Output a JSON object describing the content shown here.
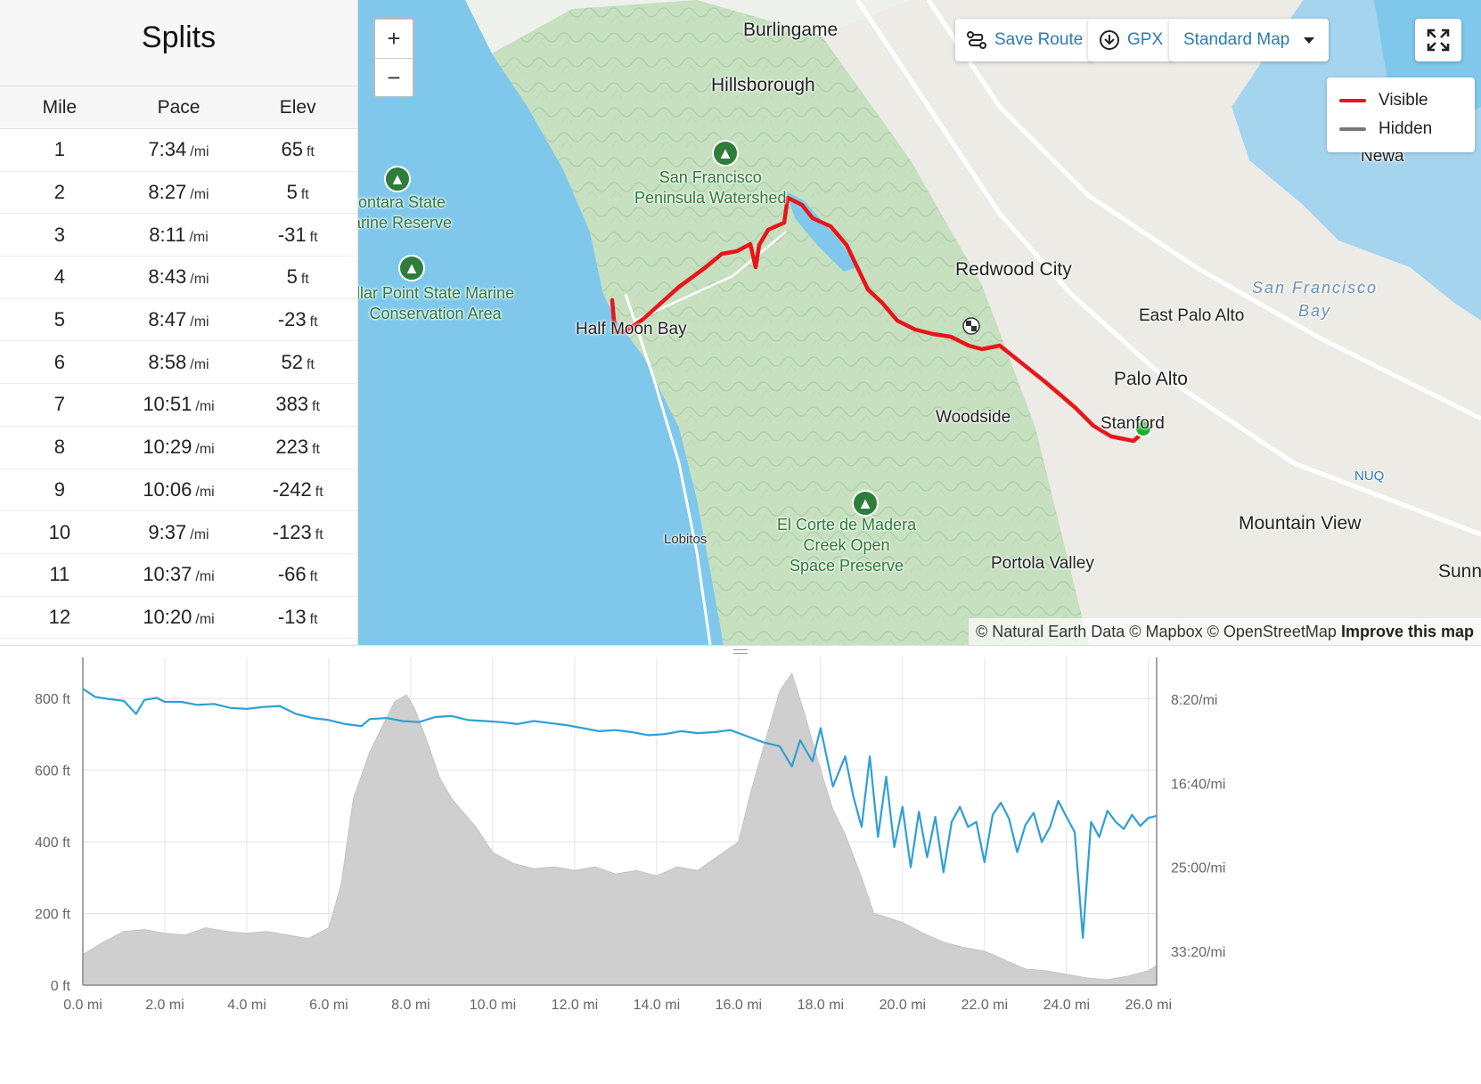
{
  "splits": {
    "title": "Splits",
    "headers": [
      "Mile",
      "Pace",
      "Elev"
    ],
    "pace_unit": "/mi",
    "elev_unit": "ft",
    "rows": [
      {
        "mile": "1",
        "pace": "7:34",
        "elev": "65"
      },
      {
        "mile": "2",
        "pace": "8:27",
        "elev": "5"
      },
      {
        "mile": "3",
        "pace": "8:11",
        "elev": "-31"
      },
      {
        "mile": "4",
        "pace": "8:43",
        "elev": "5"
      },
      {
        "mile": "5",
        "pace": "8:47",
        "elev": "-23"
      },
      {
        "mile": "6",
        "pace": "8:58",
        "elev": "52"
      },
      {
        "mile": "7",
        "pace": "10:51",
        "elev": "383"
      },
      {
        "mile": "8",
        "pace": "10:29",
        "elev": "223"
      },
      {
        "mile": "9",
        "pace": "10:06",
        "elev": "-242"
      },
      {
        "mile": "10",
        "pace": "9:37",
        "elev": "-123"
      },
      {
        "mile": "11",
        "pace": "10:37",
        "elev": "-66"
      },
      {
        "mile": "12",
        "pace": "10:20",
        "elev": "-13"
      }
    ]
  },
  "map": {
    "zoom_in": "+",
    "zoom_out": "−",
    "save_route": "Save Route",
    "gpx": "GPX",
    "map_style": "Standard Map",
    "legend": {
      "visible": "Visible",
      "hidden": "Hidden"
    },
    "attribution": "© Natural Earth Data © Mapbox © OpenStreetMap",
    "improve": "Improve this map",
    "labels": {
      "burlingame": "Burlingame",
      "hillsborough": "Hillsborough",
      "sf_watershed": "San Francisco\nPeninsula Watershed",
      "montara": "Montara State\nMarine Reserve",
      "pillar_point": "llar Point State Marine\nConservation Area",
      "redwood_city": "Redwood City",
      "sf_bay": "San Francisco\nBay",
      "east_palo_alto": "East Palo Alto",
      "palo_alto": "Palo Alto",
      "stanford": "Stanford",
      "woodside": "Woodside",
      "half_moon_bay": "Half Moon Bay",
      "lobitos": "Lobitos",
      "el_corte": "El Corte de Madera\nCreek Open\nSpace Preserve",
      "portola_valley": "Portola Valley",
      "mountain_view": "Mountain View",
      "nuq": "NUQ",
      "newark": "Newa",
      "sunnyvale": "Sunn"
    },
    "colors": {
      "route": "#e8161b",
      "hidden": "#777777",
      "water": "#7fc8ec",
      "start": "#1ab02c",
      "accent": "#2a7ab7"
    }
  },
  "chart_data": {
    "type": "area",
    "x_ticks": [
      "0.0 mi",
      "2.0 mi",
      "4.0 mi",
      "6.0 mi",
      "8.0 mi",
      "10.0 mi",
      "12.0 mi",
      "14.0 mi",
      "16.0 mi",
      "18.0 mi",
      "20.0 mi",
      "22.0 mi",
      "24.0 mi",
      "26.0 mi"
    ],
    "y_left_ticks": [
      "0 ft",
      "200 ft",
      "400 ft",
      "600 ft",
      "800 ft"
    ],
    "y_right_ticks": [
      "8:20/mi",
      "16:40/mi",
      "25:00/mi",
      "33:20/mi"
    ],
    "xlim": [
      0,
      26.2
    ],
    "ylim_left": [
      0,
      860
    ],
    "series": [
      {
        "kind": "elevation",
        "color": "#cfcfcf",
        "x": [
          0,
          0.5,
          1,
          1.5,
          2,
          2.5,
          3,
          3.5,
          4,
          4.5,
          5,
          5.5,
          6,
          6.3,
          6.6,
          7,
          7.3,
          7.6,
          7.9,
          8.1,
          8.4,
          8.7,
          9,
          9.3,
          9.6,
          10,
          10.5,
          11,
          11.5,
          12,
          12.5,
          13,
          13.5,
          14,
          14.5,
          15,
          15.5,
          16,
          16.3,
          16.7,
          17,
          17.3,
          17.6,
          18,
          18.3,
          18.6,
          19,
          19.3,
          19.6,
          20,
          20.5,
          21,
          21.5,
          22,
          22.5,
          23,
          23.5,
          24,
          24.5,
          25,
          25.5,
          26,
          26.2
        ],
        "y": [
          85,
          120,
          150,
          155,
          145,
          140,
          160,
          150,
          145,
          150,
          140,
          130,
          160,
          280,
          520,
          650,
          720,
          790,
          810,
          770,
          680,
          580,
          520,
          480,
          440,
          370,
          340,
          325,
          330,
          320,
          330,
          310,
          320,
          305,
          330,
          320,
          360,
          400,
          540,
          700,
          820,
          870,
          760,
          600,
          490,
          420,
          300,
          200,
          190,
          175,
          145,
          120,
          105,
          95,
          70,
          45,
          40,
          30,
          20,
          15,
          25,
          40,
          55
        ]
      },
      {
        "kind": "pace",
        "color": "#2f9fd6",
        "x": [
          0,
          0.3,
          0.6,
          1,
          1.3,
          1.5,
          1.8,
          2,
          2.4,
          2.8,
          3.2,
          3.6,
          4,
          4.4,
          4.8,
          5.2,
          5.6,
          6,
          6.4,
          6.8,
          7,
          7.4,
          7.8,
          8.2,
          8.6,
          9,
          9.4,
          9.8,
          10.2,
          10.6,
          11,
          11.4,
          11.8,
          12.2,
          12.6,
          13,
          13.4,
          13.8,
          14.2,
          14.6,
          15,
          15.4,
          15.8,
          16.2,
          16.6,
          17,
          17.3,
          17.5,
          17.8,
          18,
          18.3,
          18.6,
          18.8,
          19,
          19.2,
          19.4,
          19.6,
          19.8,
          20,
          20.2,
          20.4,
          20.6,
          20.8,
          21,
          21.2,
          21.4,
          21.6,
          21.8,
          22,
          22.2,
          22.4,
          22.6,
          22.8,
          23,
          23.2,
          23.4,
          23.6,
          23.8,
          24,
          24.2,
          24.4,
          24.6,
          24.8,
          25,
          25.2,
          25.4,
          25.6,
          25.8,
          26,
          26.2
        ],
        "y_pace": [
          7.3,
          8.1,
          8.3,
          8.5,
          9.8,
          8.4,
          8.2,
          8.6,
          8.6,
          8.9,
          8.8,
          9.2,
          9.3,
          9.1,
          9.0,
          9.8,
          10.2,
          10.4,
          10.8,
          11.0,
          10.3,
          10.2,
          10.5,
          10.6,
          10.1,
          10.0,
          10.4,
          10.5,
          10.6,
          10.8,
          10.5,
          10.7,
          10.9,
          11.2,
          11.5,
          11.4,
          11.6,
          11.9,
          11.8,
          11.5,
          11.7,
          11.6,
          11.4,
          12.0,
          12.6,
          13.0,
          15.0,
          12.4,
          14.5,
          11.2,
          17.0,
          14.0,
          18.0,
          21.0,
          14.0,
          22.0,
          16.0,
          23.0,
          19.0,
          25.0,
          19.5,
          24.0,
          20.0,
          25.5,
          20.5,
          19.0,
          21.0,
          20.5,
          24.5,
          19.8,
          18.6,
          20.2,
          23.5,
          20.8,
          19.6,
          22.5,
          21.0,
          18.4,
          20.0,
          21.5,
          32.0,
          20.5,
          22.0,
          19.4,
          20.5,
          21.2,
          19.8,
          20.9,
          20.1,
          19.9
        ]
      }
    ]
  }
}
